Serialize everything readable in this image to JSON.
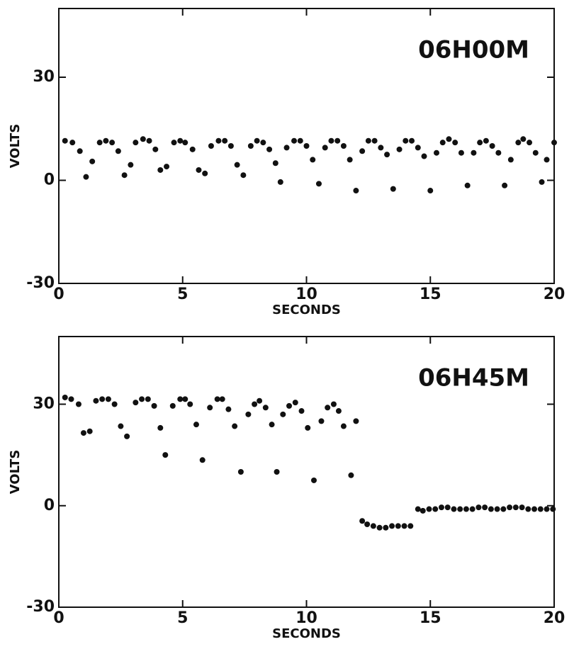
{
  "chart_data": [
    {
      "type": "scatter",
      "annotation": "06H00M",
      "xlabel": "SECONDS",
      "ylabel": "VOLTS",
      "color": "#111111",
      "xlim": [
        0,
        20
      ],
      "xticks": [
        0,
        5,
        10,
        15,
        20
      ],
      "ylim": [
        -30,
        50
      ],
      "yticks": [
        -30,
        0,
        30
      ],
      "x": [
        0.25,
        0.55,
        0.85,
        1.1,
        1.35,
        1.65,
        1.9,
        2.15,
        2.4,
        2.65,
        2.9,
        3.1,
        3.4,
        3.65,
        3.9,
        4.1,
        4.35,
        4.65,
        4.9,
        5.1,
        5.4,
        5.65,
        5.9,
        6.15,
        6.45,
        6.7,
        6.95,
        7.2,
        7.45,
        7.75,
        8.0,
        8.25,
        8.5,
        8.75,
        8.95,
        9.2,
        9.5,
        9.75,
        10.0,
        10.25,
        10.5,
        10.75,
        11.0,
        11.25,
        11.5,
        11.75,
        12.0,
        12.25,
        12.5,
        12.75,
        13.0,
        13.25,
        13.5,
        13.75,
        14.0,
        14.25,
        14.5,
        14.75,
        15.0,
        15.25,
        15.5,
        15.75,
        16.0,
        16.25,
        16.5,
        16.75,
        17.0,
        17.25,
        17.5,
        17.75,
        18.0,
        18.25,
        18.55,
        18.75,
        19.0,
        19.25,
        19.5,
        19.7,
        20.0
      ],
      "values": [
        11.5,
        11,
        8.5,
        1,
        5.5,
        11,
        11.5,
        11,
        8.5,
        1.5,
        4.5,
        11,
        12,
        11.5,
        9,
        3,
        4,
        11,
        11.5,
        11,
        9,
        3,
        2,
        10,
        11.5,
        11.5,
        10,
        4.5,
        1.5,
        10,
        11.5,
        11,
        9,
        5,
        -0.5,
        9.5,
        11.5,
        11.5,
        10,
        6,
        -1,
        9.5,
        11.5,
        11.5,
        10,
        6,
        -3,
        8.5,
        11.5,
        11.5,
        9.5,
        7.5,
        -2.5,
        9,
        11.5,
        11.5,
        9.5,
        7,
        -3,
        8,
        11,
        12,
        11,
        8,
        -1.5,
        8,
        11,
        11.5,
        10,
        8,
        -1.5,
        6,
        11,
        12,
        11,
        8,
        -0.5,
        6,
        11
      ]
    },
    {
      "type": "scatter",
      "annotation": "06H45M",
      "xlabel": "SECONDS",
      "ylabel": "VOLTS",
      "color": "#111111",
      "xlim": [
        0,
        20
      ],
      "xticks": [
        0,
        5,
        10,
        15,
        20
      ],
      "ylim": [
        -30,
        50
      ],
      "yticks": [
        -30,
        0,
        30
      ],
      "x": [
        0.25,
        0.5,
        0.8,
        1.0,
        1.25,
        1.5,
        1.75,
        2.0,
        2.25,
        2.5,
        2.75,
        3.1,
        3.35,
        3.6,
        3.85,
        4.1,
        4.3,
        4.6,
        4.9,
        5.1,
        5.3,
        5.55,
        5.8,
        6.1,
        6.4,
        6.6,
        6.85,
        7.1,
        7.35,
        7.65,
        7.9,
        8.1,
        8.35,
        8.6,
        8.8,
        9.05,
        9.3,
        9.55,
        9.8,
        10.05,
        10.3,
        10.6,
        10.85,
        11.1,
        11.3,
        11.5,
        11.8,
        12.0,
        12.25,
        12.45,
        12.7,
        12.95,
        13.2,
        13.45,
        13.7,
        13.95,
        14.2,
        14.5,
        14.7,
        14.95,
        15.2,
        15.45,
        15.7,
        15.95,
        16.2,
        16.45,
        16.7,
        16.95,
        17.2,
        17.45,
        17.7,
        17.95,
        18.2,
        18.45,
        18.7,
        18.95,
        19.2,
        19.45,
        19.7,
        19.95
      ],
      "values": [
        32,
        31.5,
        30,
        21.5,
        22,
        31,
        31.5,
        31.5,
        30,
        23.5,
        20.5,
        30.5,
        31.5,
        31.5,
        29.5,
        23,
        15,
        29.5,
        31.5,
        31.5,
        30,
        24,
        13.5,
        29,
        31.5,
        31.5,
        28.5,
        23.5,
        10,
        27,
        30,
        31,
        29,
        24,
        10,
        27,
        29.5,
        30.5,
        28,
        23,
        7.5,
        25,
        29,
        30,
        28,
        23.5,
        9,
        25,
        -4.5,
        -5.5,
        -6,
        -6.5,
        -6.5,
        -6,
        -6,
        -6,
        -6,
        -1,
        -1.5,
        -1,
        -1,
        -0.5,
        -0.5,
        -1,
        -1,
        -1,
        -1,
        -0.5,
        -0.5,
        -1,
        -1,
        -1,
        -0.5,
        -0.5,
        -0.5,
        -1,
        -1,
        -1,
        -1,
        -1
      ]
    }
  ]
}
